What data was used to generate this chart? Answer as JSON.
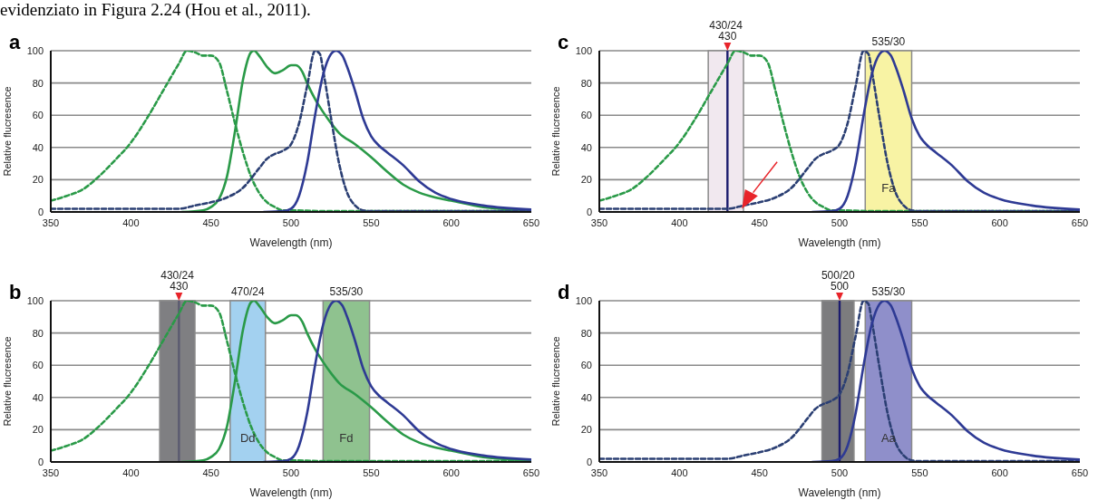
{
  "chart_data": [
    {
      "type": "line",
      "title": "a",
      "annotations": [
        "evidenziato in Figura 2.24 (Hou et al., 2011)."
      ],
      "xlabel": "Wavelength (nm)",
      "ylabel": "Relative flucresence",
      "xlim": [
        350,
        650
      ],
      "ylim": [
        0,
        100
      ],
      "xticks": [
        350,
        400,
        450,
        500,
        550,
        600,
        650
      ],
      "yticks": [
        0,
        20,
        40,
        60,
        80,
        100
      ],
      "grid": "y",
      "legend": false,
      "marker": "none",
      "series": [
        {
          "type": "line",
          "color": "#2a9a48",
          "line_style": "dashed",
          "x": [
            350,
            360,
            370,
            380,
            390,
            400,
            410,
            420,
            430,
            435,
            440,
            445,
            450,
            455,
            460,
            465,
            470,
            475,
            480,
            485,
            490,
            495,
            500,
            520,
            650
          ],
          "values": [
            7,
            10,
            14,
            22,
            32,
            43,
            58,
            75,
            92,
            100,
            99,
            97,
            97,
            93,
            75,
            55,
            37,
            22,
            12,
            6,
            3,
            1,
            1,
            0.5,
            0.5
          ]
        },
        {
          "type": "line",
          "color": "#2a9a48",
          "line_style": "solid",
          "x": [
            432,
            445,
            450,
            455,
            460,
            465,
            470,
            475,
            477,
            480,
            485,
            490,
            495,
            500,
            503,
            507,
            510,
            515,
            520,
            525,
            530,
            540,
            550,
            560,
            570,
            580,
            590,
            600,
            620,
            650
          ],
          "values": [
            0,
            1,
            3,
            8,
            22,
            50,
            82,
            99,
            100,
            97,
            90,
            86,
            88,
            91,
            91,
            87,
            80,
            70,
            62,
            55,
            49,
            42,
            34,
            25,
            17,
            12,
            9,
            7,
            3,
            1
          ]
        },
        {
          "type": "line",
          "color": "#2b3f73",
          "line_style": "dashed",
          "x": [
            350,
            400,
            430,
            440,
            450,
            460,
            470,
            480,
            485,
            490,
            495,
            500,
            505,
            510,
            515,
            518,
            520,
            525,
            530,
            535,
            540,
            545,
            550,
            650
          ],
          "values": [
            2,
            2,
            2,
            4,
            6,
            9,
            15,
            27,
            33,
            36,
            38,
            42,
            55,
            78,
            100,
            98,
            88,
            58,
            30,
            12,
            4,
            1,
            0.5,
            0.5
          ]
        },
        {
          "type": "line",
          "color": "#2e3a94",
          "line_style": "solid",
          "x": [
            483,
            495,
            500,
            505,
            510,
            515,
            520,
            525,
            528,
            532,
            535,
            540,
            545,
            550,
            555,
            560,
            570,
            580,
            590,
            600,
            620,
            650
          ],
          "values": [
            0,
            0.5,
            2,
            10,
            30,
            60,
            85,
            98,
            100,
            97,
            90,
            75,
            58,
            47,
            41,
            37,
            29,
            19,
            12,
            8,
            4,
            1.5
          ]
        }
      ]
    },
    {
      "type": "line",
      "title": "c",
      "xlabel": "Wavelength (nm)",
      "ylabel": "Relative flucresence",
      "xlim": [
        350,
        650
      ],
      "ylim": [
        0,
        100
      ],
      "xticks": [
        350,
        400,
        450,
        500,
        550,
        600,
        650
      ],
      "yticks": [
        0,
        20,
        40,
        60,
        80,
        100
      ],
      "grid": "y",
      "legend": false,
      "marker": "none",
      "bands": [
        {
          "axis": "x",
          "from": 418,
          "to": 440,
          "label": "430/24",
          "color": "#f1e8ef"
        },
        {
          "axis": "x",
          "from": 516,
          "to": 545,
          "label": "535/30",
          "color": "#f8f3a4"
        }
      ],
      "ref_lines": [
        {
          "axis": "x",
          "value": 430,
          "label": "430",
          "color": "#1c1c6e"
        }
      ],
      "annotations": [
        "Fa"
      ],
      "series": [
        {
          "type": "line",
          "color": "#2a9a48",
          "line_style": "dashed",
          "x": [
            350,
            360,
            370,
            380,
            390,
            400,
            410,
            420,
            430,
            435,
            440,
            445,
            450,
            455,
            460,
            465,
            470,
            475,
            480,
            485,
            490,
            495,
            500,
            520,
            650
          ],
          "values": [
            7,
            10,
            14,
            22,
            32,
            43,
            58,
            75,
            92,
            100,
            99,
            97,
            97,
            93,
            75,
            55,
            37,
            22,
            12,
            6,
            3,
            1,
            1,
            0.5,
            0.5
          ]
        },
        {
          "type": "line",
          "color": "#2b3f73",
          "line_style": "dashed",
          "x": [
            350,
            400,
            430,
            440,
            450,
            460,
            470,
            480,
            485,
            490,
            495,
            500,
            505,
            510,
            515,
            518,
            520,
            525,
            530,
            535,
            540,
            545,
            550,
            650
          ],
          "values": [
            2,
            2,
            2,
            4,
            6,
            9,
            15,
            27,
            33,
            36,
            38,
            42,
            55,
            78,
            100,
            98,
            88,
            58,
            30,
            12,
            4,
            1,
            0.5,
            0.5
          ]
        },
        {
          "type": "line",
          "color": "#2e3a94",
          "line_style": "solid",
          "x": [
            483,
            495,
            500,
            505,
            510,
            515,
            520,
            525,
            528,
            532,
            535,
            540,
            545,
            550,
            555,
            560,
            570,
            580,
            590,
            600,
            620,
            650
          ],
          "values": [
            0,
            0.5,
            2,
            10,
            30,
            60,
            85,
            98,
            100,
            97,
            90,
            75,
            58,
            47,
            41,
            37,
            29,
            19,
            12,
            8,
            4,
            1.5
          ]
        }
      ]
    },
    {
      "type": "line",
      "title": "b",
      "xlabel": "Wavelength (nm)",
      "ylabel": "Relative flucresence",
      "xlim": [
        350,
        650
      ],
      "ylim": [
        0,
        100
      ],
      "xticks": [
        350,
        400,
        450,
        500,
        550,
        600,
        650
      ],
      "yticks": [
        0,
        20,
        40,
        60,
        80,
        100
      ],
      "grid": "y",
      "legend": false,
      "marker": "none",
      "bands": [
        {
          "axis": "x",
          "from": 418,
          "to": 440,
          "label": "430/24",
          "color": "#7f7f82"
        },
        {
          "axis": "x",
          "from": 462,
          "to": 484,
          "label": "470/24",
          "color": "#a3d1f0"
        },
        {
          "axis": "x",
          "from": 520,
          "to": 549,
          "label": "535/30",
          "color": "#8fc28f"
        }
      ],
      "ref_lines": [
        {
          "axis": "x",
          "value": 430,
          "label": "430",
          "color": "#5a5a70"
        }
      ],
      "annotations": [
        "Dd",
        "Fd"
      ],
      "series": [
        {
          "type": "line",
          "color": "#2a9a48",
          "line_style": "dashed",
          "x": [
            350,
            360,
            370,
            380,
            390,
            400,
            410,
            420,
            430,
            435,
            440,
            445,
            450,
            455,
            460,
            465,
            470,
            475,
            480,
            485,
            490,
            495,
            500,
            520,
            650
          ],
          "values": [
            7,
            10,
            14,
            22,
            32,
            43,
            58,
            75,
            92,
            100,
            99,
            97,
            97,
            93,
            75,
            55,
            37,
            22,
            12,
            6,
            3,
            1,
            1,
            0.5,
            0.5
          ]
        },
        {
          "type": "line",
          "color": "#2a9a48",
          "line_style": "solid",
          "x": [
            432,
            445,
            450,
            455,
            460,
            465,
            470,
            475,
            477,
            480,
            485,
            490,
            495,
            500,
            503,
            507,
            510,
            515,
            520,
            525,
            530,
            540,
            550,
            560,
            570,
            580,
            590,
            600,
            620,
            650
          ],
          "values": [
            0,
            1,
            3,
            8,
            22,
            50,
            82,
            99,
            100,
            97,
            90,
            86,
            88,
            91,
            91,
            87,
            80,
            70,
            62,
            55,
            49,
            42,
            34,
            25,
            17,
            12,
            9,
            7,
            3,
            1
          ]
        },
        {
          "type": "line",
          "color": "#2e3a94",
          "line_style": "solid",
          "x": [
            483,
            495,
            500,
            505,
            510,
            515,
            520,
            525,
            528,
            532,
            535,
            540,
            545,
            550,
            555,
            560,
            570,
            580,
            590,
            600,
            620,
            650
          ],
          "values": [
            0,
            0.5,
            2,
            10,
            30,
            60,
            85,
            98,
            100,
            97,
            90,
            75,
            58,
            47,
            41,
            37,
            29,
            19,
            12,
            8,
            4,
            1.5
          ]
        }
      ]
    },
    {
      "type": "line",
      "title": "d",
      "xlabel": "Wavelength (nm)",
      "ylabel": "Relative flucresence",
      "xlim": [
        350,
        650
      ],
      "ylim": [
        0,
        100
      ],
      "xticks": [
        350,
        400,
        450,
        500,
        550,
        600,
        650
      ],
      "yticks": [
        0,
        20,
        40,
        60,
        80,
        100
      ],
      "grid": "y",
      "legend": false,
      "marker": "none",
      "bands": [
        {
          "axis": "x",
          "from": 489,
          "to": 509,
          "label": "500/20",
          "color": "#7c7c7e"
        },
        {
          "axis": "x",
          "from": 516,
          "to": 545,
          "label": "535/30",
          "color": "#8f8fca"
        }
      ],
      "ref_lines": [
        {
          "axis": "x",
          "value": 500,
          "label": "500",
          "color": "#1c1c6e"
        }
      ],
      "annotations": [
        "Aa"
      ],
      "series": [
        {
          "type": "line",
          "color": "#2b3f73",
          "line_style": "dashed",
          "x": [
            350,
            400,
            430,
            440,
            450,
            460,
            470,
            480,
            485,
            490,
            495,
            500,
            505,
            510,
            515,
            518,
            520,
            525,
            530,
            535,
            540,
            545,
            550,
            650
          ],
          "values": [
            2,
            2,
            2,
            4,
            6,
            9,
            15,
            27,
            33,
            36,
            38,
            42,
            55,
            78,
            100,
            98,
            88,
            58,
            30,
            12,
            4,
            1,
            0.5,
            0.5
          ]
        },
        {
          "type": "line",
          "color": "#2e3a94",
          "line_style": "solid",
          "x": [
            483,
            495,
            500,
            505,
            510,
            515,
            520,
            525,
            528,
            532,
            535,
            540,
            545,
            550,
            555,
            560,
            570,
            580,
            590,
            600,
            620,
            650
          ],
          "values": [
            0,
            0.5,
            2,
            10,
            30,
            60,
            85,
            98,
            100,
            97,
            90,
            75,
            58,
            47,
            41,
            37,
            29,
            19,
            12,
            8,
            4,
            1.5
          ]
        }
      ]
    }
  ]
}
